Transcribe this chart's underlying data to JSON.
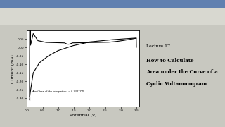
{
  "title_right_line1": "How to Calculate",
  "title_right_line2": "Area under the Curve of a",
  "title_right_line3": "Cyclic Voltammogram",
  "lecture": "Lecture 17",
  "xlabel": "Potential (V)",
  "ylabel": "Current (mA)",
  "annotation": "Area(Area of the integration) = 0.2387745",
  "xlim": [
    0.0,
    3.6
  ],
  "ylim": [
    -0.35,
    0.1
  ],
  "xticks": [
    0.0,
    0.5,
    1.0,
    1.5,
    2.0,
    2.5,
    3.0,
    3.5
  ],
  "yticks": [
    -0.3,
    -0.25,
    -0.2,
    -0.15,
    -0.1,
    -0.05,
    0.0,
    0.05
  ],
  "outer_bg": "#c8c8c0",
  "toolbar_bg": "#d8d8d0",
  "plot_bg": "#ffffff",
  "line_color": "#000000",
  "window_bar_color": "#6080b0"
}
